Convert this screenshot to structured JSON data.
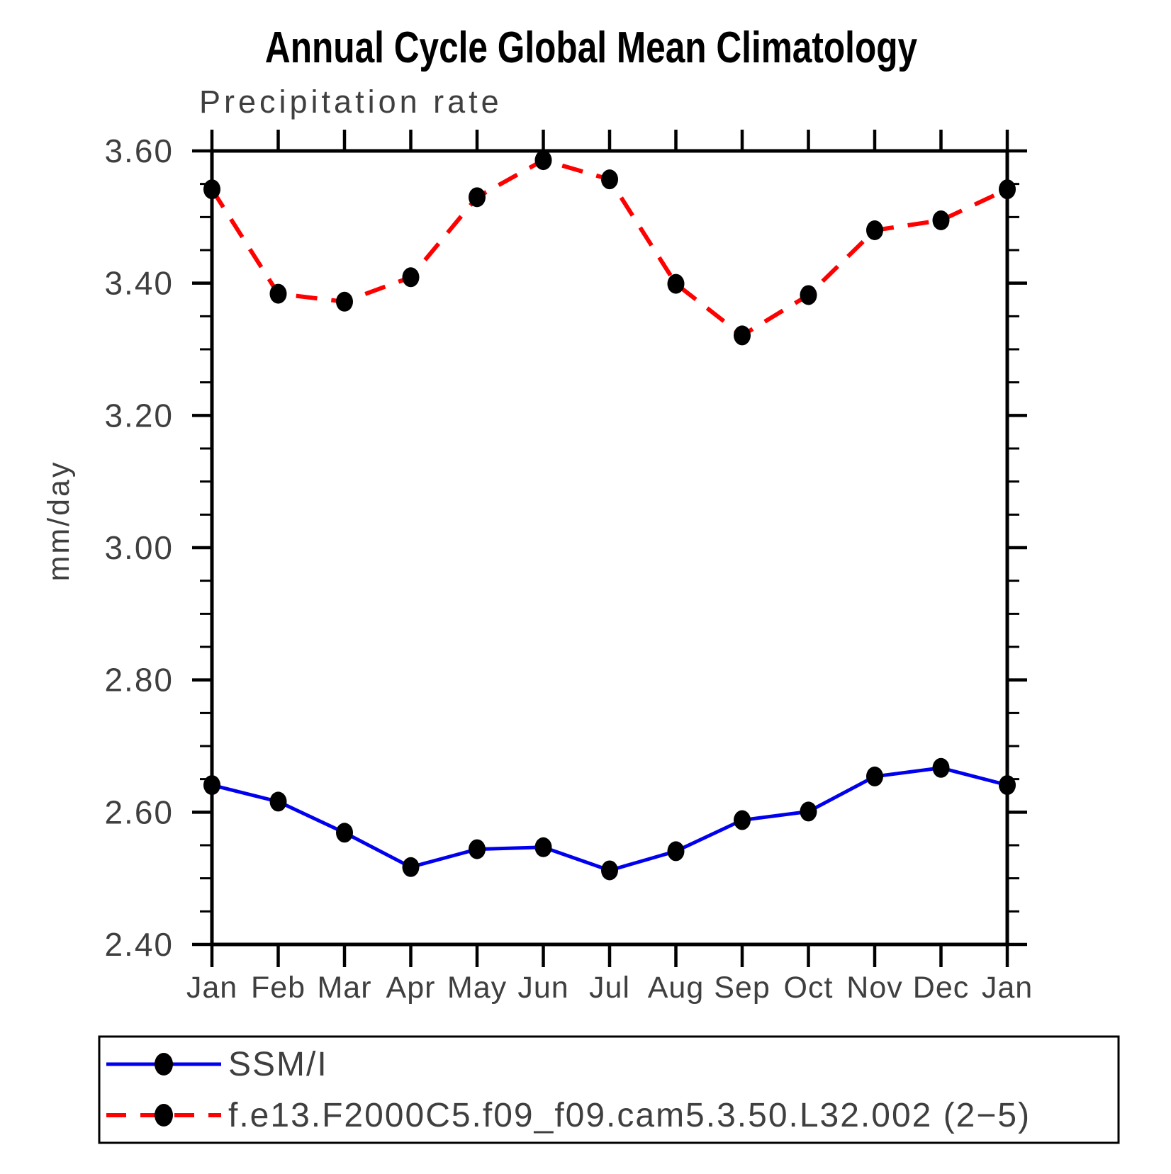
{
  "page": {
    "title": "Annual Cycle Global Mean Climatology",
    "subtitle": "Precipitation rate",
    "ylabel": "mm/day"
  },
  "chart_data": {
    "type": "line",
    "title": "Annual Cycle Global Mean Climatology",
    "subtitle": "Precipitation rate",
    "ylabel": "mm/day",
    "xlabel": "",
    "categories": [
      "Jan",
      "Feb",
      "Mar",
      "Apr",
      "May",
      "Jun",
      "Jul",
      "Aug",
      "Sep",
      "Oct",
      "Nov",
      "Dec",
      "Jan"
    ],
    "series": [
      {
        "name": "SSM/I",
        "color": "#0000ee",
        "line_style": "solid",
        "marker": "black-filled-circle",
        "values": [
          2.641,
          2.616,
          2.569,
          2.517,
          2.544,
          2.547,
          2.512,
          2.541,
          2.588,
          2.601,
          2.654,
          2.667,
          2.641
        ]
      },
      {
        "name": "f.e13.F2000C5.f09_f09.cam5.3.50.L32.002 (2−5)",
        "color": "#ff0000",
        "line_style": "dashed",
        "marker": "black-filled-circle",
        "values": [
          3.542,
          3.384,
          3.372,
          3.409,
          3.53,
          3.586,
          3.557,
          3.399,
          3.321,
          3.382,
          3.48,
          3.495,
          3.542
        ]
      }
    ],
    "ylim": [
      2.4,
      3.6
    ],
    "ytick_step": 0.2,
    "yminor_step": 0.05,
    "yticklabels": [
      "3.60",
      "3.40",
      "3.20",
      "3.00",
      "2.80",
      "2.60",
      "2.40"
    ],
    "grid": "off",
    "legend_position": "bottom-left-box",
    "marker_color": "#000000"
  }
}
